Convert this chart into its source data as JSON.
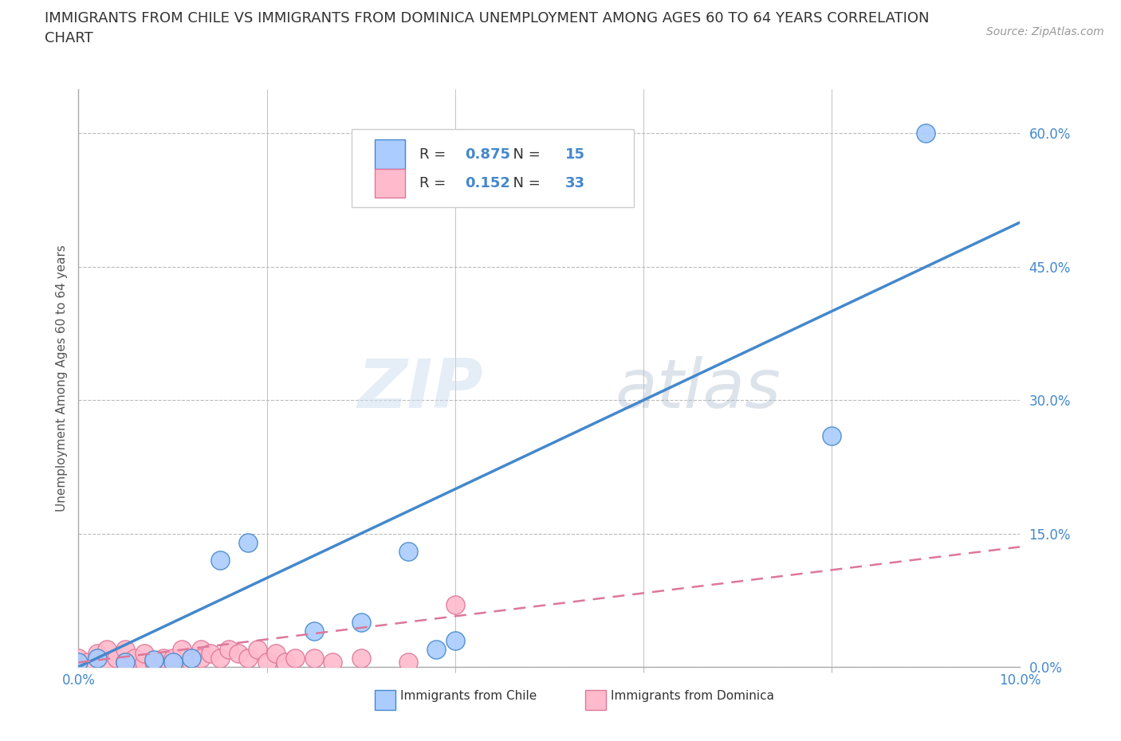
{
  "title_line1": "IMMIGRANTS FROM CHILE VS IMMIGRANTS FROM DOMINICA UNEMPLOYMENT AMONG AGES 60 TO 64 YEARS CORRELATION",
  "title_line2": "CHART",
  "source": "Source: ZipAtlas.com",
  "ylabel": "Unemployment Among Ages 60 to 64 years",
  "xlim": [
    0.0,
    0.1
  ],
  "ylim": [
    0.0,
    0.65
  ],
  "ytick_vals": [
    0.0,
    0.15,
    0.3,
    0.45,
    0.6
  ],
  "xtick_vals": [
    0.0,
    0.1
  ],
  "grid_color": "#bbbbbb",
  "chile_color": "#aaccff",
  "chile_color_dark": "#4488cc",
  "dominica_color": "#ffbbcc",
  "dominica_color_dark": "#dd7799",
  "chile_R": 0.875,
  "chile_N": 15,
  "dominica_R": 0.152,
  "dominica_N": 33,
  "chile_scatter_x": [
    0.0,
    0.002,
    0.005,
    0.008,
    0.01,
    0.012,
    0.015,
    0.018,
    0.025,
    0.03,
    0.035,
    0.038,
    0.04,
    0.08,
    0.09
  ],
  "chile_scatter_y": [
    0.005,
    0.01,
    0.005,
    0.008,
    0.005,
    0.01,
    0.12,
    0.14,
    0.04,
    0.05,
    0.13,
    0.02,
    0.03,
    0.26,
    0.6
  ],
  "dominica_scatter_x": [
    0.0,
    0.001,
    0.002,
    0.003,
    0.003,
    0.004,
    0.005,
    0.005,
    0.006,
    0.007,
    0.007,
    0.008,
    0.009,
    0.01,
    0.011,
    0.012,
    0.013,
    0.013,
    0.014,
    0.015,
    0.016,
    0.017,
    0.018,
    0.019,
    0.02,
    0.021,
    0.022,
    0.023,
    0.025,
    0.027,
    0.03,
    0.035,
    0.04
  ],
  "dominica_scatter_y": [
    0.01,
    0.005,
    0.015,
    0.005,
    0.02,
    0.01,
    0.005,
    0.02,
    0.01,
    0.005,
    0.015,
    0.005,
    0.01,
    0.01,
    0.02,
    0.005,
    0.02,
    0.01,
    0.015,
    0.01,
    0.02,
    0.015,
    0.01,
    0.02,
    0.005,
    0.015,
    0.005,
    0.01,
    0.01,
    0.005,
    0.01,
    0.005,
    0.07
  ],
  "chile_trend_x": [
    0.0,
    0.1
  ],
  "chile_trend_y": [
    0.0,
    0.5
  ],
  "dominica_trend_x": [
    0.0,
    0.1
  ],
  "dominica_trend_y": [
    0.005,
    0.135
  ],
  "watermark_zip": "ZIP",
  "watermark_atlas": "atlas",
  "background_color": "#ffffff",
  "title_fontsize": 13,
  "label_fontsize": 11,
  "tick_fontsize": 12,
  "legend_fontsize": 13,
  "source_fontsize": 10,
  "legend_text_color_R": "#333333",
  "legend_text_color_N": "#4488cc"
}
